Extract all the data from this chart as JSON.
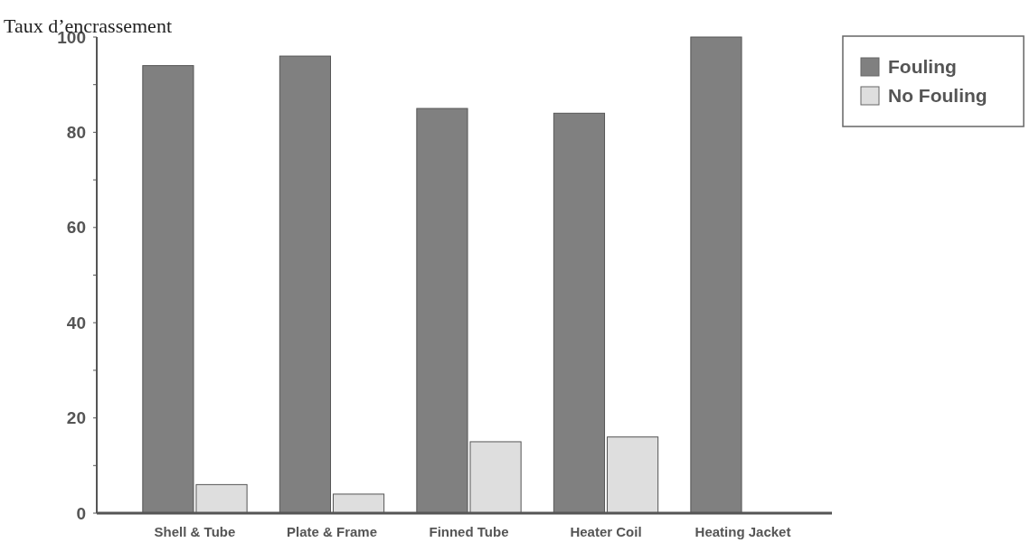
{
  "chart_data": {
    "type": "bar",
    "ylabel": "Taux d’encrassement",
    "categories": [
      "Shell & Tube",
      "Plate & Frame",
      "Finned Tube",
      "Heater Coil",
      "Heating Jacket"
    ],
    "series": [
      {
        "name": "Fouling",
        "color": "#808080",
        "values": [
          94,
          96,
          85,
          84,
          100
        ]
      },
      {
        "name": "No Fouling",
        "color": "#dedede",
        "values": [
          6,
          4,
          15,
          16,
          0
        ]
      }
    ],
    "ylim": [
      0,
      100
    ],
    "yticks": [
      0,
      {
        "value": 10,
        "label": null
      },
      20,
      {
        "value": 30,
        "label": null
      },
      40,
      {
        "value": 50,
        "label": null
      },
      60,
      {
        "value": 70,
        "label": null
      },
      80,
      {
        "value": 90,
        "label": null
      },
      100
    ],
    "legend": "top right"
  }
}
